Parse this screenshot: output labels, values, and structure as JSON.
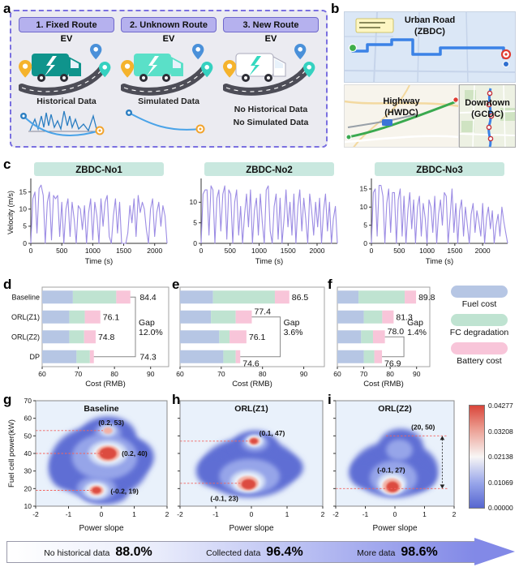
{
  "panel_letters": {
    "a": "a",
    "b": "b",
    "c": "c",
    "d": "d",
    "e": "e",
    "f": "f",
    "g": "g",
    "h": "h",
    "i": "i"
  },
  "colors": {
    "header_pill": "#c9e8df",
    "velocity_line": "#9c8ce4",
    "bars": [
      "#b6c6e4",
      "#bfe3d1",
      "#f8c5d9"
    ],
    "density_levels": {
      "b0": "#5f6ed4",
      "b1": "#96a5e9",
      "b2": "#cdd9f4",
      "b3": "#eff5fd",
      "pk": "#f3b1a5",
      "rd": "#dc4b40"
    },
    "density_bg": "#e9f1fb",
    "dash_red": "#f2635f",
    "arrow_purple": "#8289e7"
  },
  "panel_a": {
    "scenarios": [
      {
        "title": "1. Fixed Route",
        "vehicle_label": "EV",
        "caption": "Historical Data",
        "extra_lines": [],
        "truck_color": "#0f948c",
        "bolt_color": "#ffffff",
        "data_art": "history"
      },
      {
        "title": "2. Unknown Route",
        "vehicle_label": "EV",
        "caption": "Simulated Data",
        "extra_lines": [],
        "truck_color": "#5ae0c8",
        "bolt_color": "#ffffff",
        "data_art": "route"
      },
      {
        "title": "3. New Route",
        "vehicle_label": "EV",
        "caption": "",
        "extra_lines": [
          "No Historical Data",
          "No Simulated Data"
        ],
        "truck_color": "#ffffff",
        "bolt_color": "#35d9c0",
        "data_art": "none"
      }
    ]
  },
  "panel_b": {
    "maps": [
      {
        "name": "Urban Road",
        "code": "(ZBDC)"
      },
      {
        "name": "Highway",
        "code": "(HWDC)"
      },
      {
        "name": "Downtown",
        "code": "(GCDC)"
      }
    ]
  },
  "legend": {
    "items": [
      {
        "label": "Fuel cost",
        "color": "#b6c6e4"
      },
      {
        "label": "FC degradation",
        "color": "#bfe3d1"
      },
      {
        "label": "Battery cost",
        "color": "#f8c5d9"
      }
    ]
  },
  "colorbar": {
    "ticks": [
      "0.04277",
      "0.03208",
      "0.02138",
      "0.01069",
      "0.00000"
    ]
  },
  "footer_arrow": {
    "items": [
      {
        "label": "No historical data",
        "value": "88.0%"
      },
      {
        "label": "Collected data",
        "value": "96.4%"
      },
      {
        "label": "More data",
        "value": "98.6%"
      }
    ]
  },
  "chart_data": [
    {
      "id": "c1",
      "panel": "c",
      "type": "line",
      "title": "ZBDC-No1",
      "xlabel": "Time (s)",
      "ylabel": "Velocity (m/s)",
      "xmax": 2200,
      "ymax": 18,
      "xticks": [
        0,
        500,
        1000,
        1500,
        2000
      ],
      "yticks": [
        0,
        5,
        10,
        15
      ],
      "values": [
        0,
        13,
        15,
        3,
        16,
        17,
        14,
        0,
        12,
        15,
        1,
        14,
        13,
        14,
        2,
        12,
        0,
        10,
        13,
        2,
        12,
        7,
        0,
        11,
        10,
        4,
        11,
        0,
        9,
        13,
        1,
        12,
        8,
        0,
        13,
        5,
        12,
        14,
        2,
        0,
        8,
        13,
        3,
        12,
        0,
        0,
        0,
        3,
        11,
        6,
        13,
        2,
        14,
        9,
        12,
        10,
        4,
        0,
        10,
        13,
        2,
        9,
        12,
        5,
        11,
        8,
        0
      ]
    },
    {
      "id": "c2",
      "panel": "c",
      "type": "line",
      "title": "ZBDC-No2",
      "xlabel": "Time (s)",
      "ylabel": null,
      "xmax": 2350,
      "ymax": 15,
      "xticks": [
        0,
        500,
        1000,
        1500,
        2000
      ],
      "yticks": [
        0,
        5,
        10
      ],
      "values": [
        0,
        12,
        13,
        13,
        2,
        14,
        13,
        0,
        11,
        13,
        3,
        12,
        14,
        1,
        13,
        12,
        0,
        10,
        13,
        2,
        9,
        0,
        7,
        12,
        4,
        13,
        0,
        8,
        11,
        2,
        12,
        5,
        0,
        13,
        14,
        3,
        0,
        9,
        12,
        1,
        11,
        0,
        6,
        13,
        4,
        10,
        2,
        12,
        0,
        9,
        13,
        3,
        11,
        6,
        0,
        12,
        8,
        2,
        10,
        4,
        11,
        0,
        8,
        12,
        3,
        10,
        0,
        6,
        9,
        0
      ]
    },
    {
      "id": "c3",
      "panel": "c",
      "type": "line",
      "title": "ZBDC-No3",
      "xlabel": "Time (s)",
      "ylabel": null,
      "xmax": 2450,
      "ymax": 17,
      "xticks": [
        0,
        500,
        1000,
        1500,
        2000
      ],
      "yticks": [
        0,
        5,
        10,
        15
      ],
      "values": [
        0,
        14,
        15,
        2,
        16,
        16,
        13,
        0,
        11,
        15,
        3,
        14,
        14,
        0,
        12,
        15,
        2,
        13,
        0,
        9,
        14,
        4,
        12,
        0,
        10,
        13,
        2,
        11,
        7,
        0,
        12,
        10,
        3,
        13,
        0,
        8,
        12,
        5,
        14,
        13,
        0,
        7,
        15,
        3,
        11,
        0,
        9,
        12,
        2,
        10,
        5,
        0,
        8,
        11,
        3,
        9,
        6,
        2,
        11,
        0,
        7,
        10,
        4,
        9,
        0,
        5,
        8,
        2,
        10,
        6,
        3,
        0
      ]
    },
    {
      "id": "d",
      "panel": "d",
      "type": "stacked_bar",
      "xlabel": "Cost (RMB)",
      "xmin": 60,
      "xmax": 95,
      "xticks": [
        60,
        70,
        80,
        90
      ],
      "series_labels": [
        "Fuel cost",
        "FC degradation",
        "Battery cost"
      ],
      "row_labels_visible": true,
      "rows": [
        {
          "name": "Baseline",
          "ends": [
            68.5,
            80.5,
            84.4
          ],
          "total": "84.4",
          "label_x": 87.0
        },
        {
          "name": "ORL(Z1)",
          "ends": [
            67.5,
            71.8,
            76.1
          ],
          "total": "76.1"
        },
        {
          "name": "ORL(Z2)",
          "ends": [
            67.5,
            71.6,
            74.8
          ],
          "total": "74.8"
        },
        {
          "name": "DP",
          "ends": [
            69.5,
            73.2,
            74.3
          ],
          "total": "74.3",
          "label_x": 87.0
        }
      ],
      "gap": {
        "from": 0,
        "to": 3,
        "x": 85.8,
        "label": [
          "Gap",
          "12.0%"
        ]
      }
    },
    {
      "id": "e",
      "panel": "e",
      "type": "stacked_bar",
      "xlabel": "Cost (RMB)",
      "xmin": 60,
      "xmax": 95,
      "xticks": [
        60,
        70,
        80,
        90
      ],
      "series_labels": [
        "Fuel cost",
        "FC degradation",
        "Battery cost"
      ],
      "row_labels_visible": false,
      "rows": [
        {
          "name": "Baseline",
          "ends": [
            68.0,
            83.0,
            86.5
          ],
          "total": "86.5"
        },
        {
          "name": "ORL(Z1)",
          "ends": [
            67.5,
            73.5,
            77.4
          ],
          "total": "77.4",
          "label_dy": -7
        },
        {
          "name": "ORL(Z2)",
          "ends": [
            69.5,
            72.0,
            76.1
          ],
          "total": "76.1"
        },
        {
          "name": "DP",
          "ends": [
            70.5,
            73.5,
            74.6
          ],
          "total": "74.6",
          "label_dy": 8
        }
      ],
      "gap": {
        "from": 1,
        "to": 3,
        "x": 84.3,
        "label": [
          "Gap",
          "3.6%"
        ]
      }
    },
    {
      "id": "f",
      "panel": "f",
      "type": "stacked_bar",
      "xlabel": "Cost (RMB)",
      "xmin": 60,
      "xmax": 95,
      "xticks": [
        60,
        70,
        80,
        90
      ],
      "series_labels": [
        "Fuel cost",
        "FC degradation",
        "Battery cost"
      ],
      "row_labels_visible": false,
      "rows": [
        {
          "name": "Baseline",
          "ends": [
            68.0,
            85.5,
            89.8
          ],
          "total": "89.8"
        },
        {
          "name": "ORL(Z1)",
          "ends": [
            70.0,
            77.0,
            81.3
          ],
          "total": "81.3"
        },
        {
          "name": "ORL(Z2)",
          "ends": [
            69.0,
            73.5,
            78.0
          ],
          "total": "78.0",
          "label_dy": -7
        },
        {
          "name": "DP",
          "ends": [
            70.0,
            74.0,
            76.9
          ],
          "total": "76.9",
          "label_dy": 8
        }
      ],
      "gap": {
        "from": 2,
        "to": 3,
        "x": 85.2,
        "label": [
          "Gap",
          "1.4%"
        ]
      }
    },
    {
      "id": "g",
      "panel": "g",
      "type": "density",
      "title": "Baseline",
      "xlabel": "Power slope",
      "ylabel": "Fuel cell power(kW)",
      "xlim": [
        -2,
        2
      ],
      "ylim": [
        10,
        70
      ],
      "xticks": [
        -2,
        -1,
        0,
        1,
        2
      ],
      "yticks": [
        10,
        20,
        30,
        40,
        50,
        60,
        70
      ],
      "annotations": [
        {
          "text": "(0.2, 53)",
          "x": 0.3,
          "y": 57.5,
          "anchor": "middle"
        },
        {
          "text": "(0.2, 40)",
          "x": 0.62,
          "y": 40,
          "anchor": "start"
        },
        {
          "text": "(-0.2, 19)",
          "x": 0.28,
          "y": 18.5,
          "anchor": "start"
        }
      ],
      "dashes": [
        {
          "y": 53,
          "x0": -2,
          "x1": 0.05
        },
        {
          "y": 40,
          "x0": -2,
          "x1": 0.05
        },
        {
          "y": 19,
          "x0": -2,
          "x1": -0.3
        }
      ],
      "blobs": [
        [
          -0.05,
          35,
          1.5,
          21,
          "b0"
        ],
        [
          0.2,
          50,
          0.85,
          11,
          "b0"
        ],
        [
          -1.1,
          31,
          0.5,
          11,
          "b0"
        ],
        [
          1.0,
          38,
          0.6,
          10,
          "b0"
        ],
        [
          0.1,
          17,
          0.7,
          6,
          "b0"
        ],
        [
          0.1,
          38,
          1.0,
          13,
          "b1"
        ],
        [
          -0.15,
          20,
          0.6,
          7,
          "b1"
        ],
        [
          0.2,
          52,
          0.4,
          5.5,
          "b1"
        ],
        [
          0.2,
          40,
          0.6,
          7.5,
          "b2"
        ],
        [
          -0.15,
          19,
          0.4,
          5,
          "b2"
        ],
        [
          0.2,
          53,
          0.25,
          3.5,
          "b2"
        ],
        [
          0.2,
          40,
          0.45,
          5.5,
          "b3"
        ],
        [
          -0.15,
          19,
          0.28,
          3.6,
          "b3"
        ],
        [
          0.2,
          40,
          0.36,
          4.6,
          "pk"
        ],
        [
          -0.15,
          19,
          0.22,
          2.9,
          "pk"
        ],
        [
          0.2,
          53,
          0.14,
          1.9,
          "pk"
        ],
        [
          0.2,
          40,
          0.26,
          3.4,
          "rd"
        ],
        [
          -0.15,
          19,
          0.14,
          1.9,
          "rd"
        ]
      ]
    },
    {
      "id": "h",
      "panel": "h",
      "type": "density",
      "title": "ORL(Z1)",
      "xlabel": "Power slope",
      "ylabel": null,
      "xlim": [
        -2,
        2
      ],
      "ylim": [
        10,
        70
      ],
      "xticks": [
        -2,
        -1,
        0,
        1,
        2
      ],
      "yticks": [
        10,
        20,
        30,
        40,
        50,
        60,
        70
      ],
      "annotations": [
        {
          "text": "(0.1, 47)",
          "x": 0.22,
          "y": 51.5,
          "anchor": "start"
        },
        {
          "text": "(-0.1, 23)",
          "x": -1.15,
          "y": 14.5,
          "anchor": "start"
        }
      ],
      "dashes": [
        {
          "y": 47,
          "x0": -2,
          "x1": 0
        },
        {
          "y": 23,
          "x0": -2,
          "x1": -0.25
        }
      ],
      "blobs": [
        [
          -0.05,
          32,
          1.35,
          17,
          "b0"
        ],
        [
          0.1,
          44,
          0.65,
          9,
          "b0"
        ],
        [
          -1.05,
          30,
          0.5,
          9,
          "b0"
        ],
        [
          0.9,
          32,
          0.55,
          8,
          "b0"
        ],
        [
          -0.05,
          27,
          0.85,
          10,
          "b1"
        ],
        [
          0.1,
          46,
          0.38,
          5,
          "b1"
        ],
        [
          -0.1,
          24,
          0.5,
          6.5,
          "b2"
        ],
        [
          0.1,
          47,
          0.26,
          3.6,
          "b2"
        ],
        [
          -0.1,
          23.5,
          0.38,
          5,
          "b3"
        ],
        [
          0.08,
          47,
          0.2,
          2.8,
          "b3"
        ],
        [
          -0.1,
          23,
          0.3,
          4.2,
          "pk"
        ],
        [
          0.08,
          47,
          0.16,
          2.3,
          "pk"
        ],
        [
          -0.08,
          22.5,
          0.2,
          2.9,
          "rd"
        ],
        [
          0.07,
          47,
          0.11,
          1.6,
          "rd"
        ]
      ]
    },
    {
      "id": "i",
      "panel": "i",
      "type": "density",
      "title": "ORL(Z2)",
      "xlabel": "Power slope",
      "ylabel": null,
      "xlim": [
        -2,
        2
      ],
      "ylim": [
        10,
        70
      ],
      "xticks": [
        -2,
        -1,
        0,
        1,
        2
      ],
      "yticks": [
        10,
        20,
        30,
        40,
        50,
        60,
        70
      ],
      "annotations": [
        {
          "text": "(20, 50)",
          "x": 0.55,
          "y": 55,
          "anchor": "start"
        },
        {
          "text": "(-0.1, 27)",
          "x": -0.6,
          "y": 30.5,
          "anchor": "start"
        }
      ],
      "dashes": [
        {
          "y": 50,
          "x0": -0.3,
          "x1": 1.78
        },
        {
          "y": 20,
          "x0": -2,
          "x1": 1.78
        }
      ],
      "range_arrow": {
        "x": 1.6,
        "y0": 20,
        "y1": 50
      },
      "blobs": [
        [
          0,
          31,
          1.45,
          16,
          "b0"
        ],
        [
          0.2,
          44,
          0.75,
          10,
          "b0"
        ],
        [
          -1.05,
          29,
          0.5,
          8,
          "b0"
        ],
        [
          0.8,
          27,
          0.6,
          8,
          "b0"
        ],
        [
          -0.05,
          26,
          0.8,
          10,
          "b1"
        ],
        [
          0.15,
          42,
          0.45,
          6,
          "b1"
        ],
        [
          -0.1,
          23,
          0.5,
          6.5,
          "b2"
        ],
        [
          -0.1,
          22,
          0.4,
          5.2,
          "b3"
        ],
        [
          -0.1,
          21.5,
          0.32,
          4.4,
          "pk"
        ],
        [
          -0.08,
          21,
          0.21,
          3,
          "rd"
        ]
      ]
    }
  ]
}
